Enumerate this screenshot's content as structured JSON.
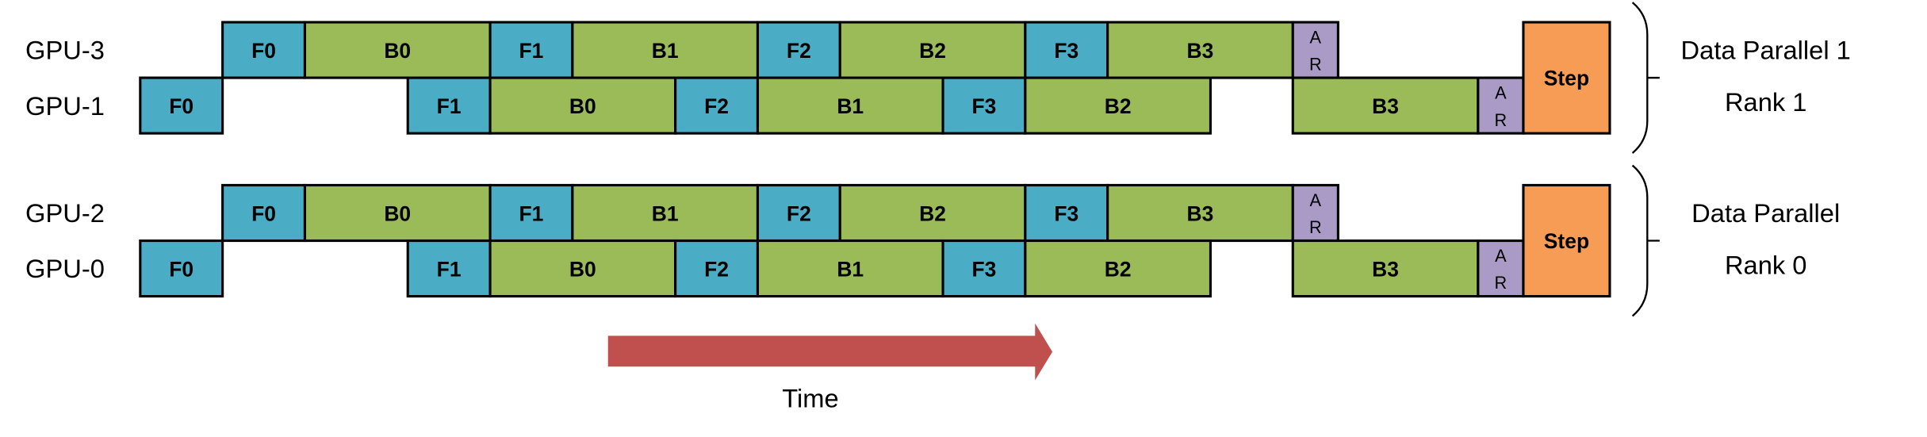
{
  "colors": {
    "forward": "#4BACC6",
    "backward": "#9BBB59",
    "allreduce": "#A99BC5",
    "step": "#F79C55",
    "arrow": "#C0504D"
  },
  "groups": [
    {
      "label_line1": "Data Parallel 1",
      "label_line2": "Rank 1",
      "step_label": "Step",
      "rows": [
        {
          "gpu": "GPU-3",
          "tasks": [
            "F0",
            "B0",
            "F1",
            "B1",
            "F2",
            "B2",
            "F3",
            "B3",
            "AR"
          ]
        },
        {
          "gpu": "GPU-1",
          "tasks": [
            "F0",
            "F1",
            "B0",
            "F2",
            "B1",
            "F3",
            "B2",
            "B3",
            "AR"
          ]
        }
      ]
    },
    {
      "label_line1": "Data Parallel",
      "label_line2": "Rank 0",
      "step_label": "Step",
      "rows": [
        {
          "gpu": "GPU-2",
          "tasks": [
            "F0",
            "B0",
            "F1",
            "B1",
            "F2",
            "B2",
            "F3",
            "B3",
            "AR"
          ]
        },
        {
          "gpu": "GPU-0",
          "tasks": [
            "F0",
            "F1",
            "B0",
            "F2",
            "B1",
            "F3",
            "B2",
            "B3",
            "AR"
          ]
        }
      ]
    }
  ],
  "ar_label_top": "A",
  "ar_label_bottom": "R",
  "time_label": "Time"
}
